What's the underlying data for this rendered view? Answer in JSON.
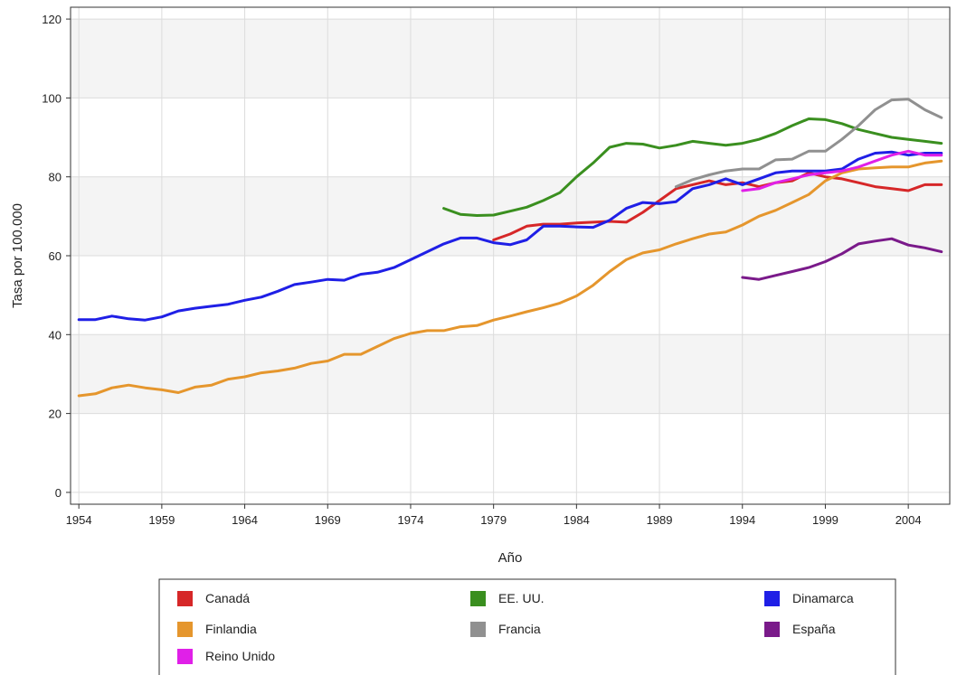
{
  "chart_data": {
    "type": "line",
    "xlabel": "Año",
    "ylabel": "Tasa por 100.000",
    "xlim": [
      1953.5,
      2006.5
    ],
    "ylim": [
      -3,
      123
    ],
    "x_ticks": [
      1954,
      1959,
      1964,
      1969,
      1974,
      1979,
      1984,
      1989,
      1994,
      1999,
      2004
    ],
    "y_ticks": [
      0,
      20,
      40,
      60,
      80,
      100,
      120
    ],
    "grid": true,
    "legend_position": "bottom",
    "series": [
      {
        "name": "Canadá",
        "color": "#d62728",
        "x": [
          1979,
          1980,
          1981,
          1982,
          1983,
          1984,
          1985,
          1986,
          1987,
          1988,
          1989,
          1990,
          1991,
          1992,
          1993,
          1994,
          1995,
          1996,
          1997,
          1998,
          1999,
          2000,
          2001,
          2002,
          2003,
          2004,
          2005,
          2006
        ],
        "y": [
          64,
          65.5,
          67.5,
          68,
          68,
          68.3,
          68.5,
          68.7,
          68.5,
          71,
          74,
          77,
          78,
          79,
          78,
          78.5,
          77.5,
          78.5,
          79,
          81,
          80,
          79.5,
          78.5,
          77.5,
          77,
          76.5,
          78,
          78
        ]
      },
      {
        "name": "EE. UU.",
        "color": "#3a8f1f",
        "x": [
          1976,
          1977,
          1978,
          1979,
          1980,
          1981,
          1982,
          1983,
          1984,
          1985,
          1986,
          1987,
          1988,
          1989,
          1990,
          1991,
          1992,
          1993,
          1994,
          1995,
          1996,
          1997,
          1998,
          1999,
          2000,
          2001,
          2002,
          2003,
          2004,
          2005,
          2006
        ],
        "y": [
          72,
          70.5,
          70.2,
          70.3,
          71.3,
          72.3,
          74,
          76,
          80,
          83.5,
          87.5,
          88.5,
          88.3,
          87.3,
          88,
          89,
          88.5,
          88,
          88.5,
          89.5,
          91,
          93,
          94.7,
          94.5,
          93.5,
          92,
          91,
          90,
          89.5,
          89,
          88.5
        ]
      },
      {
        "name": "Dinamarca",
        "color": "#1f1fe6",
        "x": [
          1954,
          1955,
          1956,
          1957,
          1958,
          1959,
          1960,
          1961,
          1962,
          1963,
          1964,
          1965,
          1966,
          1967,
          1968,
          1969,
          1970,
          1971,
          1972,
          1973,
          1974,
          1975,
          1976,
          1977,
          1978,
          1979,
          1980,
          1981,
          1982,
          1983,
          1984,
          1985,
          1986,
          1987,
          1988,
          1989,
          1990,
          1991,
          1992,
          1993,
          1994,
          1995,
          1996,
          1997,
          1998,
          1999,
          2000,
          2001,
          2002,
          2003,
          2004,
          2005,
          2006
        ],
        "y": [
          43.8,
          43.8,
          44.7,
          44,
          43.7,
          44.5,
          46,
          46.7,
          47.2,
          47.7,
          48.7,
          49.5,
          51,
          52.7,
          53.3,
          54,
          53.8,
          55.3,
          55.8,
          57,
          59,
          61,
          63,
          64.5,
          64.5,
          63.3,
          62.8,
          64,
          67.5,
          67.5,
          67.3,
          67.2,
          69,
          72,
          73.5,
          73.2,
          73.7,
          77,
          78,
          79.5,
          78,
          79.5,
          81,
          81.5,
          81.5,
          81.5,
          82,
          84.5,
          86,
          86.3,
          85.5,
          86,
          86
        ]
      },
      {
        "name": "Finlandia",
        "color": "#e5962d",
        "x": [
          1954,
          1955,
          1956,
          1957,
          1958,
          1959,
          1960,
          1961,
          1962,
          1963,
          1964,
          1965,
          1966,
          1967,
          1968,
          1969,
          1970,
          1971,
          1972,
          1973,
          1974,
          1975,
          1976,
          1977,
          1978,
          1979,
          1980,
          1981,
          1982,
          1983,
          1984,
          1985,
          1986,
          1987,
          1988,
          1989,
          1990,
          1991,
          1992,
          1993,
          1994,
          1995,
          1996,
          1997,
          1998,
          1999,
          2000,
          2001,
          2002,
          2003,
          2004,
          2005,
          2006
        ],
        "y": [
          24.5,
          25,
          26.5,
          27.2,
          26.5,
          26,
          25.3,
          26.7,
          27.2,
          28.7,
          29.3,
          30.3,
          30.8,
          31.5,
          32.7,
          33.3,
          35,
          35,
          37,
          39,
          40.3,
          41,
          41,
          42,
          42.3,
          43.7,
          44.7,
          45.8,
          46.8,
          48,
          49.8,
          52.5,
          56,
          59,
          60.7,
          61.5,
          63,
          64.3,
          65.5,
          66,
          67.8,
          70,
          71.5,
          73.5,
          75.5,
          79,
          81,
          82,
          82.3,
          82.5,
          82.5,
          83.5,
          84
        ]
      },
      {
        "name": "Francia",
        "color": "#909090",
        "x": [
          1990,
          1991,
          1992,
          1993,
          1994,
          1995,
          1996,
          1997,
          1998,
          1999,
          2000,
          2001,
          2002,
          2003,
          2004,
          2005,
          2006
        ],
        "y": [
          77.5,
          79.3,
          80.5,
          81.5,
          82,
          82,
          84.3,
          84.5,
          86.5,
          86.5,
          89.5,
          93,
          97,
          99.5,
          99.7,
          97,
          95
        ]
      },
      {
        "name": "España",
        "color": "#7a1a8a",
        "x": [
          1994,
          1995,
          1996,
          1997,
          1998,
          1999,
          2000,
          2001,
          2002,
          2003,
          2004,
          2005,
          2006
        ],
        "y": [
          54.5,
          54,
          55,
          56,
          57,
          58.5,
          60.5,
          63,
          63.7,
          64.3,
          62.7,
          62,
          61
        ]
      },
      {
        "name": "Reino Unido",
        "color": "#e020e8",
        "x": [
          1994,
          1995,
          1996,
          1997,
          1998,
          1999,
          2000,
          2001,
          2002,
          2003,
          2004,
          2005,
          2006
        ],
        "y": [
          76.5,
          77,
          78.5,
          79.5,
          80.5,
          81,
          81.5,
          82.5,
          84,
          85.5,
          86.5,
          85.5,
          85.5
        ]
      }
    ]
  }
}
